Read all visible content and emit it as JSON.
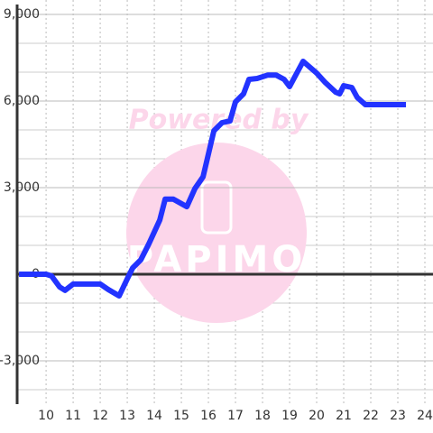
{
  "chart_data": {
    "type": "line",
    "watermark": {
      "top": "Powered by",
      "logo": "PAPIMO"
    },
    "x": [
      9.0,
      10.0,
      10.2,
      10.5,
      10.7,
      11.0,
      11.5,
      12.0,
      12.3,
      12.7,
      13.0,
      13.2,
      13.5,
      13.8,
      14.2,
      14.4,
      14.7,
      15.2,
      15.5,
      15.8,
      16.2,
      16.5,
      16.8,
      17.0,
      17.3,
      17.5,
      17.8,
      18.2,
      18.5,
      18.8,
      19.0,
      19.5,
      20.0,
      20.3,
      20.7,
      20.85,
      21.0,
      21.3,
      21.5,
      21.8,
      22.0,
      23.3
    ],
    "series": [
      {
        "color": "#2233ff",
        "values": [
          0,
          0,
          -60,
          -440,
          -560,
          -340,
          -340,
          -340,
          -530,
          -750,
          -160,
          220,
          500,
          1060,
          1875,
          2600,
          2600,
          2340,
          2970,
          3375,
          4970,
          5250,
          5310,
          5970,
          6250,
          6750,
          6780,
          6900,
          6900,
          6750,
          6500,
          7375,
          6970,
          6660,
          6310,
          6250,
          6530,
          6470,
          6125,
          5875,
          5875,
          5875
        ]
      }
    ],
    "xlim": [
      8.93,
      24.3
    ],
    "ylim": [
      -4500,
      9000
    ],
    "xticks": [
      10,
      11,
      12,
      13,
      14,
      15,
      16,
      17,
      18,
      19,
      20,
      21,
      22,
      23,
      24
    ],
    "yticks": [
      {
        "value": -3000,
        "label": "-3,000"
      },
      0,
      {
        "value": 3000,
        "label": "3,000"
      },
      {
        "value": 6000,
        "label": "6,000"
      },
      {
        "value": 9000,
        "label": "9,000"
      }
    ],
    "yminor": [
      -4000,
      -2000,
      -1000,
      1000,
      2000,
      4000,
      5000,
      7000,
      8000
    ],
    "grid": true
  }
}
